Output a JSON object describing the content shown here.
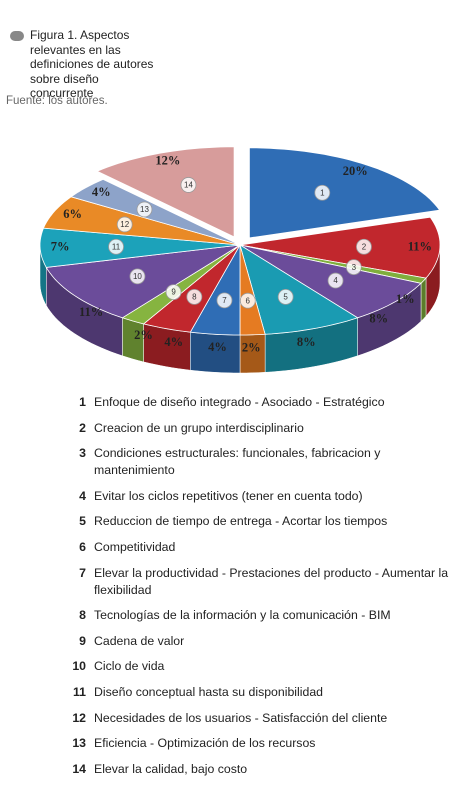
{
  "chart_data": {
    "type": "pie",
    "title": "Figura 1. Aspectos relevantes en las definiciones de autores sobre diseño concurrente",
    "source": "Fuente: los autores.",
    "slice_numbers": [
      "1",
      "2",
      "3",
      "4",
      "5",
      "6",
      "7",
      "8",
      "9",
      "10",
      "11",
      "12",
      "13",
      "14"
    ],
    "categories": [
      "Enfoque de diseño integrado - Asociado - Estratégico",
      "Creacion de un grupo interdisciplinario",
      "Condiciones estructurales: funcionales, fabricacion y mantenimiento",
      "Evitar los ciclos repetitivos (tener en cuenta todo)",
      "Reduccion de tiempo de entrega - Acortar los tiempos",
      "Competitividad",
      "Elevar la productividad - Prestaciones del producto - Aumentar la flexibilidad",
      "Tecnologías de la información y la comunicación - BIM",
      "Cadena de valor",
      "Ciclo de vida",
      "Diseño conceptual hasta su disponibilidad",
      "Necesidades de los usuarios - Satisfacción del cliente",
      "Eficiencia - Optimización de los recursos",
      "Elevar la calidad, bajo costo"
    ],
    "values": [
      20,
      11,
      1,
      8,
      8,
      2,
      4,
      4,
      2,
      11,
      7,
      6,
      4,
      12
    ],
    "value_labels": [
      "20%",
      "11%",
      "1%",
      "8%",
      "8%",
      "2%",
      "4%",
      "4%",
      "2%",
      "11%",
      "7%",
      "6%",
      "4%",
      "12%"
    ],
    "colors": [
      "#2f6db5",
      "#c1272d",
      "#7fae3c",
      "#6b4c9a",
      "#1a9bb2",
      "#e57b22",
      "#2f6db5",
      "#c1272d",
      "#86b440",
      "#6b4c9a",
      "#1ca2ba",
      "#e98a26",
      "#8da3c9",
      "#d79c9b"
    ],
    "exploded": [
      0,
      13
    ]
  }
}
